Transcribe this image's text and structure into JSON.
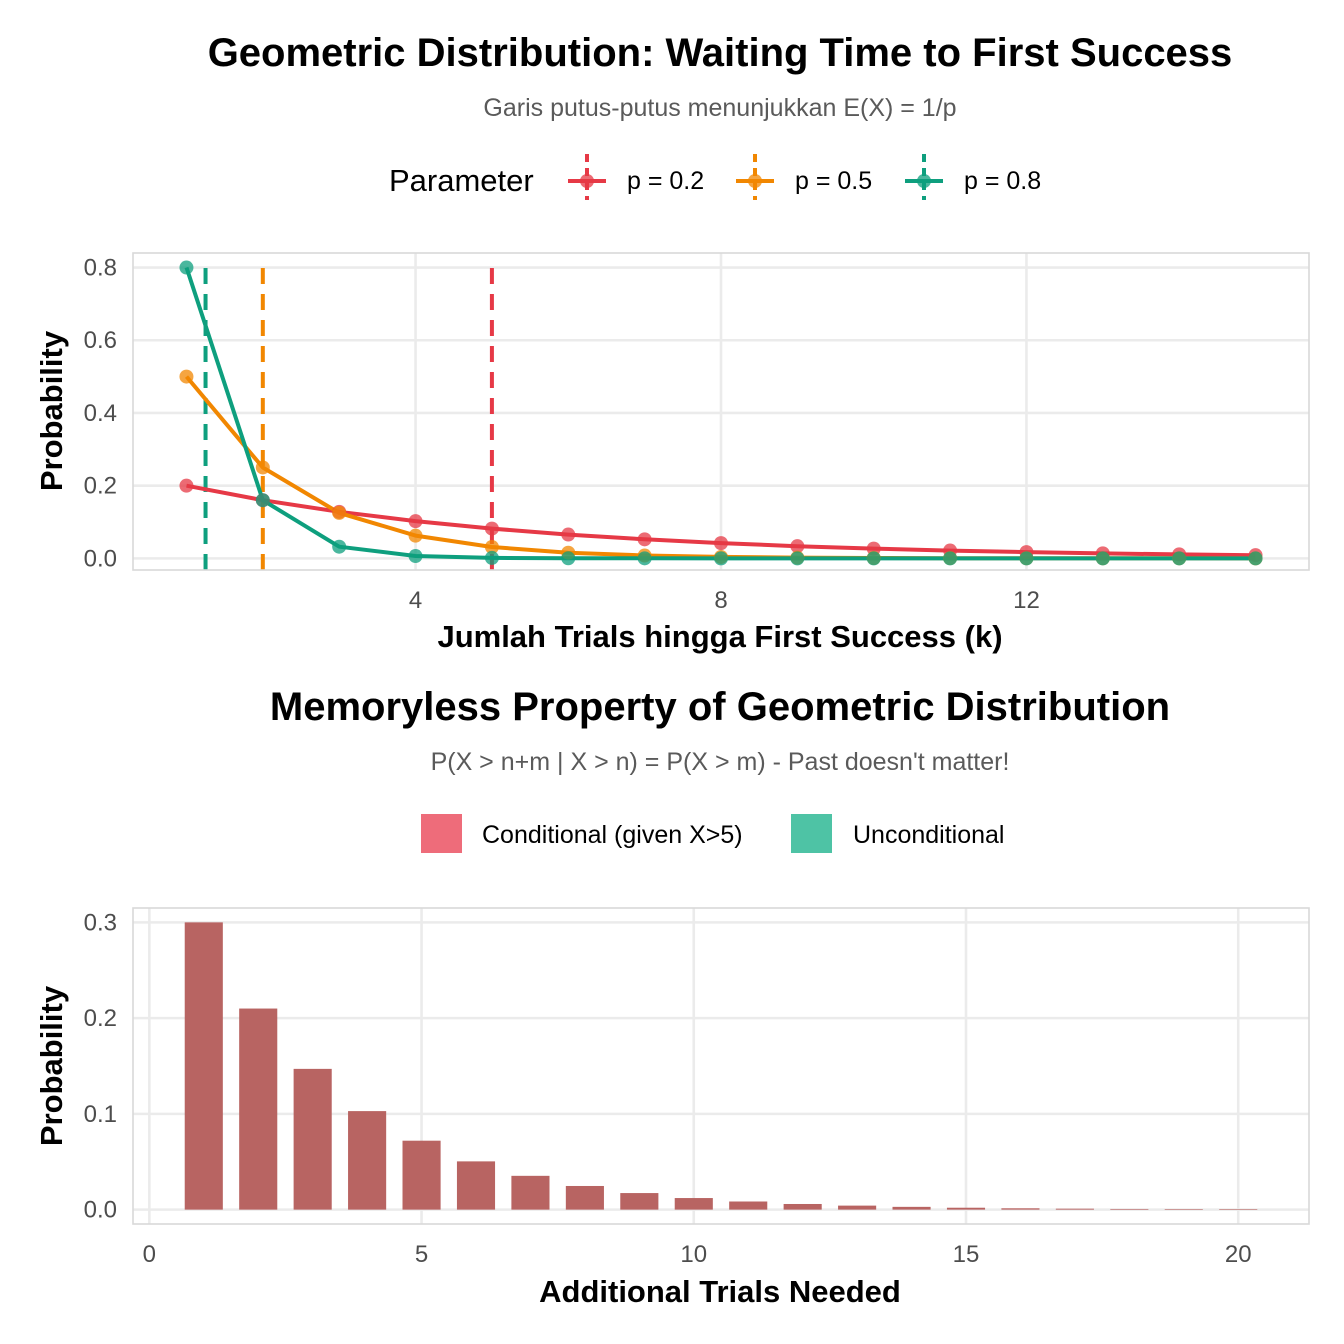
{
  "chart_data": [
    {
      "type": "line",
      "title": "Geometric Distribution: Waiting Time to First Success",
      "subtitle": "Garis putus-putus menunjukkan E(X) = 1/p",
      "xlabel": "Jumlah Trials hingga First Success (k)",
      "ylabel": "Probability",
      "xlim": [
        0.3,
        15.7
      ],
      "ylim": [
        -0.032,
        0.84
      ],
      "x_ticks": [
        4,
        8,
        12
      ],
      "x_tick_labels": [
        "4",
        "8",
        "12"
      ],
      "y_ticks": [
        0,
        0.2,
        0.4,
        0.6,
        0.8
      ],
      "y_tick_labels": [
        "0.0",
        "0.2",
        "0.4",
        "0.6",
        "0.8"
      ],
      "grid": true,
      "legend_position": "top",
      "legend_title": "Parameter",
      "x": [
        1,
        2,
        3,
        4,
        5,
        6,
        7,
        8,
        9,
        10,
        11,
        12,
        13,
        14,
        15
      ],
      "series": [
        {
          "name": "p = 0.2",
          "color": "#E63946",
          "expected_value": 5,
          "values": [
            0.2,
            0.16,
            0.128,
            0.1024,
            0.0819,
            0.0655,
            0.0524,
            0.0419,
            0.0336,
            0.0268,
            0.0215,
            0.0172,
            0.0137,
            0.011,
            0.0088
          ]
        },
        {
          "name": "p = 0.5",
          "color": "#F18701",
          "expected_value": 2,
          "values": [
            0.5,
            0.25,
            0.125,
            0.0625,
            0.0313,
            0.0156,
            0.0078,
            0.0039,
            0.002,
            0.001,
            0.0005,
            0.0002,
            0.0001,
            0.0001,
            0.0
          ]
        },
        {
          "name": "p = 0.8",
          "color": "#0E9F7E",
          "expected_value": 1.25,
          "values": [
            0.8,
            0.16,
            0.032,
            0.0064,
            0.0013,
            0.0003,
            0.0001,
            0.0,
            0.0,
            0.0,
            0.0,
            0.0,
            0.0,
            0.0,
            0.0
          ]
        }
      ]
    },
    {
      "type": "bar",
      "title": "Memoryless Property of Geometric Distribution",
      "subtitle": "P(X > n+m | X > n) = P(X > m) - Past doesn't matter!",
      "xlabel": "Additional Trials Needed",
      "ylabel": "Probability",
      "xlim": [
        -0.3,
        21.3
      ],
      "ylim": [
        -0.015,
        0.315
      ],
      "x_ticks": [
        0,
        5,
        10,
        15,
        20
      ],
      "x_tick_labels": [
        "0",
        "5",
        "10",
        "15",
        "20"
      ],
      "y_ticks": [
        0,
        0.1,
        0.2,
        0.3
      ],
      "y_tick_labels": [
        "0.0",
        "0.1",
        "0.2",
        "0.3"
      ],
      "grid": true,
      "legend_position": "top",
      "legend": [
        {
          "name": "Conditional (given X>5)",
          "color": "#EE6C7A"
        },
        {
          "name": "Unconditional",
          "color": "#4EC3A5"
        }
      ],
      "bar_color": "#B86462",
      "categories": [
        1,
        2,
        3,
        4,
        5,
        6,
        7,
        8,
        9,
        10,
        11,
        12,
        13,
        14,
        15,
        16,
        17,
        18,
        19,
        20
      ],
      "values": [
        0.3,
        0.21,
        0.147,
        0.1029,
        0.072,
        0.0504,
        0.0353,
        0.0247,
        0.0173,
        0.0121,
        0.0085,
        0.0059,
        0.0042,
        0.0029,
        0.002,
        0.0014,
        0.001,
        0.0007,
        0.0005,
        0.0003
      ]
    }
  ]
}
